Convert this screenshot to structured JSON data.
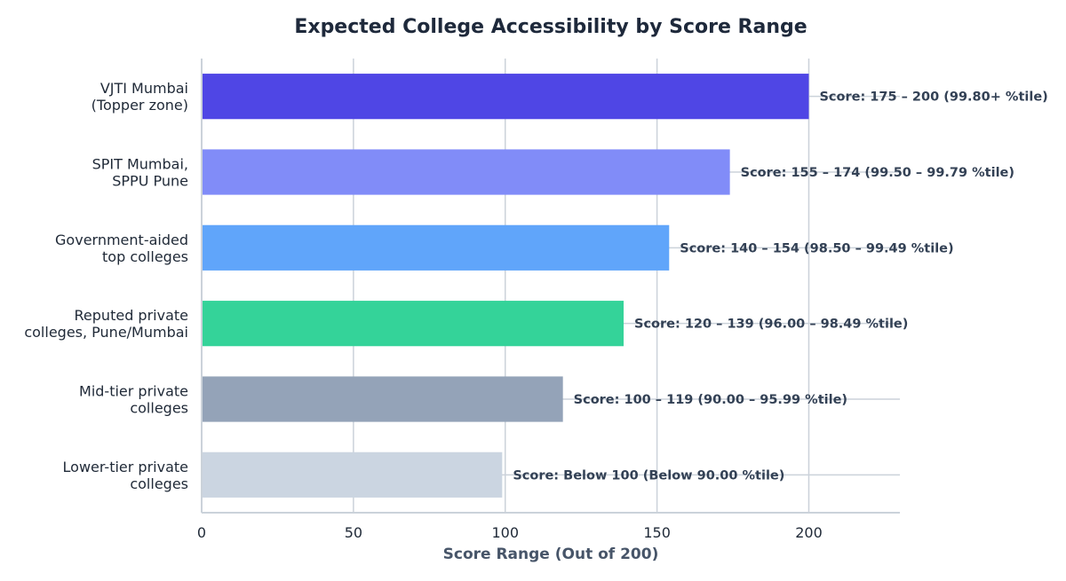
{
  "chart_data": {
    "type": "bar",
    "orientation": "horizontal",
    "title": "Expected College Accessibility by Score Range",
    "xlabel": "Score Range (Out of 200)",
    "ylabel": "",
    "xlim": [
      0,
      230
    ],
    "xticks": [
      0,
      50,
      100,
      150,
      200
    ],
    "grid": true,
    "categories": [
      [
        "VJTI Mumbai",
        "(Topper zone)"
      ],
      [
        "SPIT Mumbai,",
        "SPPU Pune"
      ],
      [
        "Government-aided",
        "top colleges"
      ],
      [
        "Reputed private",
        "colleges, Pune/Mumbai"
      ],
      [
        "Mid-tier private",
        "colleges"
      ],
      [
        "Lower-tier private",
        "colleges"
      ]
    ],
    "values": [
      200,
      174,
      154,
      139,
      119,
      99
    ],
    "data_labels": [
      "Score: 175 – 200  (99.80+ %tile)",
      "Score: 155 – 174  (99.50 – 99.79 %tile)",
      "Score: 140 – 154  (98.50 – 99.49 %tile)",
      "Score: 120 – 139  (96.00 – 98.49 %tile)",
      "Score: 100 – 119  (90.00 – 95.99 %tile)",
      "Score: Below 100  (Below 90.00 %tile)"
    ],
    "colors": [
      "#4f46e5",
      "#818cf8",
      "#60a5fa",
      "#34d399",
      "#94a3b8",
      "#cbd5e1"
    ]
  }
}
